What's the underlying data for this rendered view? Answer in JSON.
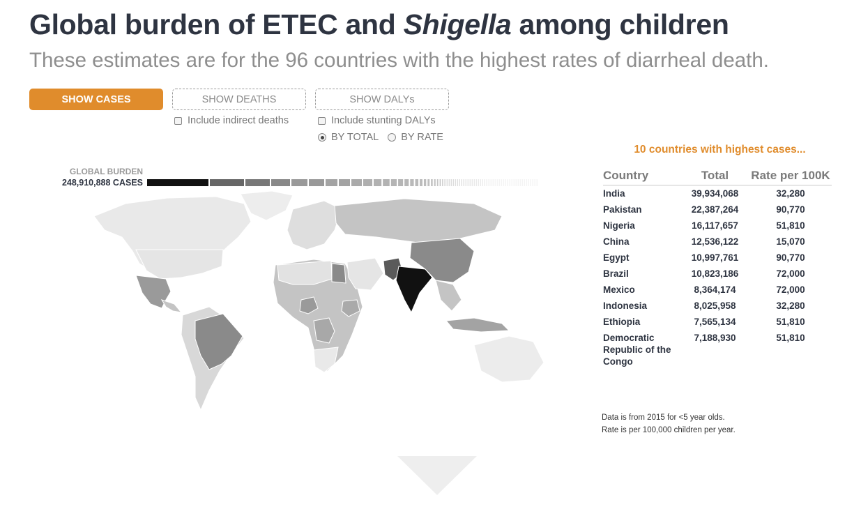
{
  "header": {
    "title_part1": "Global burden of ETEC and ",
    "title_italic": "Shigella",
    "title_part2": " among children",
    "subtitle": "These estimates are for the 96 countries with the highest rates of diarrheal death."
  },
  "controls": {
    "buttons": [
      {
        "label": "SHOW CASES",
        "active": true
      },
      {
        "label": "SHOW DEATHS",
        "active": false
      },
      {
        "label": "SHOW DALYs",
        "active": false
      }
    ],
    "indirect_deaths_label": "Include indirect deaths",
    "stunting_dalys_label": "Include stunting DALYs",
    "by_total_label": "BY TOTAL",
    "by_rate_label": "BY RATE",
    "selected_mode": "BY TOTAL"
  },
  "global_burden": {
    "label": "GLOBAL BURDEN",
    "value": "248,910,888 CASES"
  },
  "colors": {
    "accent": "#e08c2c",
    "text_dark": "#2e3441",
    "map_light": "#e9e9e9",
    "map_mid": "#c4c4c4",
    "map_dark": "#8a8a8a",
    "map_darker": "#5a5a5a",
    "map_top": "#111111"
  },
  "ranking": {
    "title": "10 countries with highest cases...",
    "columns": [
      "Country",
      "Total",
      "Rate per 100K"
    ],
    "rows": [
      {
        "country": "India",
        "total": "39,934,068",
        "rate": "32,280"
      },
      {
        "country": "Pakistan",
        "total": "22,387,264",
        "rate": "90,770"
      },
      {
        "country": "Nigeria",
        "total": "16,117,657",
        "rate": "51,810"
      },
      {
        "country": "China",
        "total": "12,536,122",
        "rate": "15,070"
      },
      {
        "country": "Egypt",
        "total": "10,997,761",
        "rate": "90,770"
      },
      {
        "country": "Brazil",
        "total": "10,823,186",
        "rate": "72,000"
      },
      {
        "country": "Mexico",
        "total": "8,364,174",
        "rate": "72,000"
      },
      {
        "country": "Indonesia",
        "total": "8,025,958",
        "rate": "32,280"
      },
      {
        "country": "Ethiopia",
        "total": "7,565,134",
        "rate": "51,810"
      },
      {
        "country": "Democratic Republic of the Congo",
        "total": "7,188,930",
        "rate": "51,810"
      }
    ]
  },
  "notes": {
    "line1": "Data is from 2015 for <5 year olds.",
    "line2": "Rate is per 100,000 children per year."
  }
}
